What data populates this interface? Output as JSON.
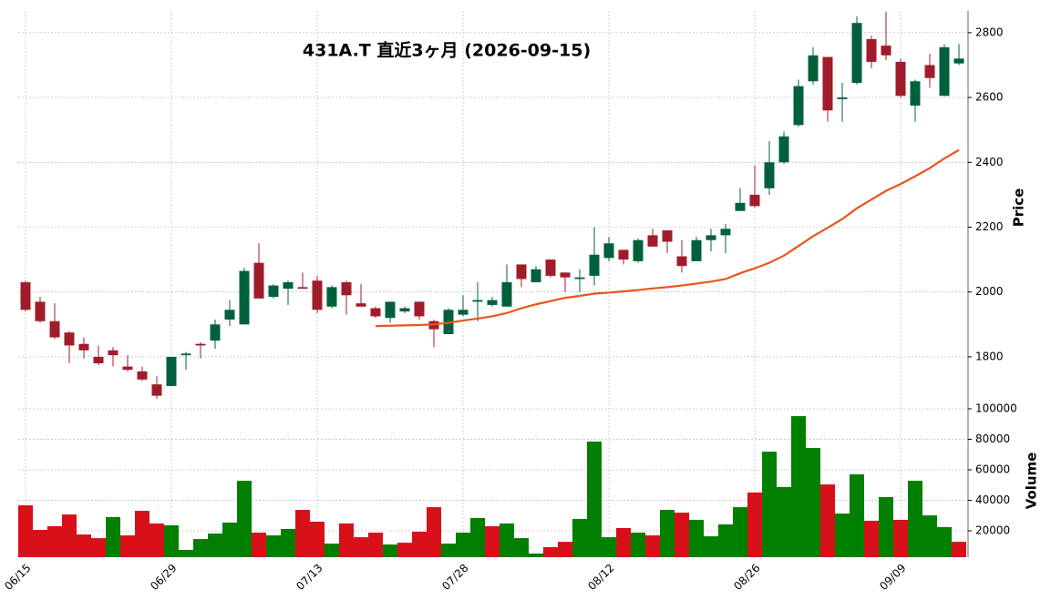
{
  "chart_data": {
    "type": "candlestick",
    "title": "431A.T 直近3ヶ月 (2026-09-15)",
    "categories": [
      "06/15",
      null,
      null,
      null,
      null,
      null,
      null,
      null,
      null,
      null,
      "06/29",
      null,
      null,
      null,
      null,
      null,
      null,
      null,
      null,
      null,
      "07/13",
      null,
      null,
      null,
      null,
      null,
      null,
      null,
      null,
      null,
      "07/28",
      null,
      null,
      null,
      null,
      null,
      null,
      null,
      null,
      null,
      "08/12",
      null,
      null,
      null,
      null,
      null,
      null,
      null,
      null,
      null,
      "08/26",
      null,
      null,
      null,
      null,
      null,
      null,
      null,
      null,
      null,
      "09/09",
      null,
      null,
      null,
      null
    ],
    "open": [
      2030,
      1970,
      1910,
      1875,
      1840,
      1800,
      1820,
      1770,
      1755,
      1715,
      1710,
      1805,
      1840,
      1850,
      1915,
      1900,
      2090,
      1985,
      2010,
      2015,
      2035,
      1955,
      2030,
      1965,
      1950,
      1920,
      1940,
      1970,
      1910,
      1870,
      1930,
      1970,
      1960,
      1955,
      2085,
      2030,
      2100,
      2060,
      2040,
      2050,
      2105,
      2130,
      2095,
      2175,
      2190,
      2110,
      2095,
      2160,
      2175,
      2250,
      2300,
      2320,
      2400,
      2515,
      2650,
      2725,
      2595,
      2645,
      2780,
      2760,
      2710,
      2575,
      2700,
      2605,
      2705
    ],
    "high": [
      2035,
      1985,
      1965,
      1880,
      1860,
      1835,
      1830,
      1805,
      1770,
      1740,
      1800,
      1815,
      1845,
      1915,
      1975,
      2075,
      2150,
      2025,
      2035,
      2060,
      2050,
      2020,
      2035,
      2025,
      1955,
      1970,
      1955,
      1970,
      1915,
      1950,
      1990,
      2030,
      1985,
      2085,
      2085,
      2080,
      2100,
      2060,
      2070,
      2200,
      2170,
      2130,
      2165,
      2195,
      2190,
      2160,
      2170,
      2195,
      2210,
      2320,
      2390,
      2465,
      2495,
      2655,
      2755,
      2725,
      2645,
      2850,
      2790,
      2865,
      2720,
      2655,
      2735,
      2765,
      2765
    ],
    "low": [
      1940,
      1905,
      1855,
      1780,
      1795,
      1775,
      1770,
      1755,
      1725,
      1670,
      1710,
      1760,
      1795,
      1825,
      1895,
      1900,
      1980,
      1980,
      1960,
      2010,
      1935,
      1950,
      1930,
      1955,
      1920,
      1905,
      1935,
      1915,
      1830,
      1870,
      1925,
      1910,
      1955,
      1955,
      2015,
      2030,
      2045,
      2000,
      2000,
      2020,
      2095,
      2085,
      2090,
      2140,
      2120,
      2060,
      2095,
      2125,
      2120,
      2250,
      2260,
      2300,
      2395,
      2510,
      2640,
      2525,
      2525,
      2640,
      2690,
      2715,
      2600,
      2525,
      2630,
      2605,
      2700
    ],
    "close": [
      1945,
      1910,
      1860,
      1835,
      1820,
      1780,
      1805,
      1760,
      1730,
      1680,
      1800,
      1810,
      1835,
      1900,
      1945,
      2065,
      1980,
      2020,
      2030,
      2010,
      1945,
      2015,
      1990,
      1955,
      1925,
      1970,
      1950,
      1925,
      1885,
      1945,
      1945,
      1975,
      1975,
      2030,
      2040,
      2070,
      2050,
      2045,
      2045,
      2115,
      2150,
      2100,
      2160,
      2140,
      2155,
      2080,
      2160,
      2175,
      2195,
      2275,
      2265,
      2400,
      2480,
      2635,
      2730,
      2560,
      2600,
      2830,
      2710,
      2730,
      2605,
      2650,
      2660,
      2755,
      2720
    ],
    "up_color": "#00603c",
    "down_color": "#a01c2a",
    "ylim": [
      1665,
      2867
    ],
    "yticks": [
      1800,
      2000,
      2200,
      2400,
      2600,
      2800
    ],
    "ylabel": "Price",
    "grid": true,
    "ma": {
      "color": "#e8561c",
      "values": [
        null,
        null,
        null,
        null,
        null,
        null,
        null,
        null,
        null,
        null,
        null,
        null,
        null,
        null,
        null,
        null,
        null,
        null,
        null,
        null,
        null,
        null,
        null,
        null,
        1895,
        1896,
        1897,
        1898,
        1900,
        1905,
        1912,
        1918,
        1925,
        1935,
        1950,
        1962,
        1972,
        1982,
        1988,
        1995,
        1998,
        2002,
        2006,
        2011,
        2015,
        2020,
        2026,
        2032,
        2040,
        2058,
        2073,
        2090,
        2112,
        2142,
        2172,
        2198,
        2225,
        2258,
        2285,
        2312,
        2333,
        2357,
        2382,
        2412,
        2438
      ]
    },
    "volume": {
      "ylabel": "Volume",
      "ylim": [
        2700,
        101800
      ],
      "yticks": [
        20000,
        40000,
        60000,
        80000,
        100000
      ],
      "values": [
        36700,
        20600,
        23000,
        30700,
        17600,
        15200,
        29000,
        17000,
        33100,
        24800,
        23600,
        7500,
        14600,
        18200,
        25400,
        52800,
        18800,
        17000,
        21200,
        33700,
        26000,
        11600,
        24800,
        15800,
        18800,
        11000,
        12200,
        19400,
        35500,
        11600,
        18800,
        28400,
        23000,
        24800,
        15200,
        5100,
        9300,
        12800,
        27800,
        78500,
        15800,
        21800,
        18800,
        17000,
        33700,
        31900,
        27200,
        16400,
        24200,
        35500,
        45100,
        71900,
        48700,
        95200,
        74300,
        50400,
        31300,
        57000,
        26600,
        42100,
        27200,
        52800,
        30100,
        22400,
        12800
      ],
      "colors": [
        "#d7101a",
        "#d7101a",
        "#d7101a",
        "#d7101a",
        "#d7101a",
        "#d7101a",
        "#007f00",
        "#d7101a",
        "#d7101a",
        "#d7101a",
        "#007f00",
        "#007f00",
        "#007f00",
        "#007f00",
        "#007f00",
        "#007f00",
        "#d7101a",
        "#007f00",
        "#007f00",
        "#d7101a",
        "#d7101a",
        "#007f00",
        "#d7101a",
        "#d7101a",
        "#d7101a",
        "#007f00",
        "#d7101a",
        "#d7101a",
        "#d7101a",
        "#007f00",
        "#007f00",
        "#007f00",
        "#d7101a",
        "#007f00",
        "#007f00",
        "#007f00",
        "#d7101a",
        "#d7101a",
        "#007f00",
        "#007f00",
        "#007f00",
        "#d7101a",
        "#007f00",
        "#d7101a",
        "#007f00",
        "#d7101a",
        "#007f00",
        "#007f00",
        "#007f00",
        "#007f00",
        "#d7101a",
        "#007f00",
        "#007f00",
        "#007f00",
        "#007f00",
        "#d7101a",
        "#007f00",
        "#007f00",
        "#d7101a",
        "#007f00",
        "#d7101a",
        "#007f00",
        "#007f00",
        "#007f00",
        "#d7101a"
      ]
    }
  }
}
